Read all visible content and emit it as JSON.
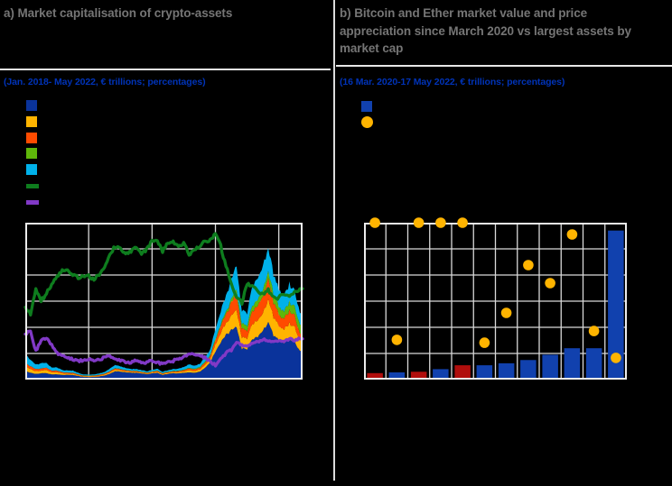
{
  "colors": {
    "background": "#000000",
    "title_text": "#757575",
    "subtitle_text": "#0033B8",
    "rule": "#E8E8E8",
    "grid": "#D9D9D9",
    "plot_border": "#ECECEC",
    "separator": "#DCDCDC",
    "area_blue": "#0A339B",
    "area_yellow": "#FFB400",
    "area_orange": "#FF4B00",
    "area_green": "#5FB70A",
    "area_cyan": "#00B1EA",
    "line_dark_green": "#0E7D1E",
    "line_purple": "#8139C6",
    "bar_blue": "#1141AE",
    "bar_red": "#B00E0C",
    "dot_yellow": "#FFB400"
  },
  "panel_a": {
    "title": "a) Market capitalisation of crypto-assets",
    "subtitle": "(Jan. 2018- May 2022, € trillions; percentages)",
    "legend": {
      "labels_visible": false,
      "items": [
        {
          "swatch": "square",
          "color_key": "area_blue"
        },
        {
          "swatch": "square",
          "color_key": "area_yellow"
        },
        {
          "swatch": "square",
          "color_key": "area_orange"
        },
        {
          "swatch": "square",
          "color_key": "area_green"
        },
        {
          "swatch": "square",
          "color_key": "area_cyan"
        },
        {
          "swatch": "line",
          "color_key": "line_dark_green"
        },
        {
          "swatch": "line",
          "color_key": "line_purple"
        }
      ]
    },
    "chart_data": {
      "type": "area",
      "stacked": true,
      "title": "Market capitalisation of crypto-assets",
      "x_range": "Jan 2018 - 17 May 2022",
      "ylim_left": [
        0,
        3
      ],
      "ylim_right": [
        0,
        100
      ],
      "units_left": "EUR trillions",
      "units_right": "percentages",
      "grid": {
        "h_divisions": 6,
        "v_gridline_month_indices": [
          12,
          24,
          36,
          48
        ]
      },
      "tick_labels_visible": false,
      "categories": [
        "2018-01",
        "2018-02",
        "2018-03",
        "2018-04",
        "2018-05",
        "2018-06",
        "2018-07",
        "2018-08",
        "2018-09",
        "2018-10",
        "2018-11",
        "2018-12",
        "2019-01",
        "2019-02",
        "2019-03",
        "2019-04",
        "2019-05",
        "2019-06",
        "2019-07",
        "2019-08",
        "2019-09",
        "2019-10",
        "2019-11",
        "2019-12",
        "2020-01",
        "2020-02",
        "2020-03",
        "2020-04",
        "2020-05",
        "2020-06",
        "2020-07",
        "2020-08",
        "2020-09",
        "2020-10",
        "2020-11",
        "2020-12",
        "2021-01",
        "2021-02",
        "2021-03",
        "2021-04",
        "2021-05",
        "2021-06",
        "2021-07",
        "2021-08",
        "2021-09",
        "2021-10",
        "2021-11",
        "2021-12",
        "2022-01",
        "2022-02",
        "2022-03",
        "2022-04",
        "2022-05"
      ],
      "series": [
        {
          "name": "area-blue",
          "color_key": "area_blue",
          "values": [
            0.16,
            0.13,
            0.11,
            0.12,
            0.12,
            0.1,
            0.1,
            0.09,
            0.09,
            0.09,
            0.07,
            0.05,
            0.05,
            0.05,
            0.06,
            0.08,
            0.11,
            0.16,
            0.15,
            0.14,
            0.13,
            0.13,
            0.12,
            0.1,
            0.12,
            0.13,
            0.09,
            0.11,
            0.12,
            0.12,
            0.13,
            0.14,
            0.13,
            0.15,
            0.22,
            0.32,
            0.55,
            0.72,
            0.85,
            0.95,
            1.0,
            0.6,
            0.58,
            0.78,
            0.8,
            0.95,
            1.1,
            0.85,
            0.75,
            0.7,
            0.78,
            0.72,
            0.55
          ]
        },
        {
          "name": "area-yellow",
          "color_key": "area_yellow",
          "values": [
            0.09,
            0.07,
            0.05,
            0.05,
            0.06,
            0.04,
            0.04,
            0.03,
            0.02,
            0.02,
            0.015,
            0.012,
            0.012,
            0.013,
            0.015,
            0.017,
            0.025,
            0.03,
            0.025,
            0.02,
            0.018,
            0.018,
            0.016,
            0.013,
            0.016,
            0.02,
            0.015,
            0.018,
            0.02,
            0.022,
            0.028,
            0.042,
            0.038,
            0.04,
            0.055,
            0.065,
            0.13,
            0.18,
            0.21,
            0.28,
            0.33,
            0.22,
            0.2,
            0.3,
            0.3,
            0.35,
            0.43,
            0.35,
            0.28,
            0.26,
            0.3,
            0.28,
            0.2
          ]
        },
        {
          "name": "area-orange",
          "color_key": "area_orange",
          "values": [
            0.06,
            0.05,
            0.04,
            0.04,
            0.04,
            0.03,
            0.03,
            0.02,
            0.02,
            0.02,
            0.015,
            0.012,
            0.012,
            0.012,
            0.014,
            0.016,
            0.02,
            0.025,
            0.02,
            0.018,
            0.015,
            0.015,
            0.013,
            0.012,
            0.014,
            0.016,
            0.012,
            0.014,
            0.016,
            0.018,
            0.022,
            0.03,
            0.026,
            0.03,
            0.04,
            0.05,
            0.09,
            0.14,
            0.17,
            0.25,
            0.3,
            0.17,
            0.15,
            0.25,
            0.27,
            0.33,
            0.4,
            0.28,
            0.22,
            0.2,
            0.24,
            0.22,
            0.13
          ]
        },
        {
          "name": "area-green",
          "color_key": "area_green",
          "values": [
            0.002,
            0.002,
            0.002,
            0.002,
            0.002,
            0.003,
            0.003,
            0.003,
            0.003,
            0.003,
            0.003,
            0.003,
            0.003,
            0.003,
            0.003,
            0.004,
            0.004,
            0.005,
            0.005,
            0.005,
            0.005,
            0.005,
            0.005,
            0.005,
            0.006,
            0.006,
            0.007,
            0.008,
            0.009,
            0.01,
            0.012,
            0.014,
            0.016,
            0.018,
            0.02,
            0.025,
            0.03,
            0.04,
            0.05,
            0.06,
            0.08,
            0.09,
            0.09,
            0.1,
            0.11,
            0.12,
            0.13,
            0.14,
            0.15,
            0.15,
            0.16,
            0.165,
            0.17
          ]
        },
        {
          "name": "area-cyan",
          "color_key": "area_cyan",
          "values": [
            0.17,
            0.12,
            0.09,
            0.1,
            0.09,
            0.06,
            0.06,
            0.04,
            0.04,
            0.04,
            0.03,
            0.02,
            0.02,
            0.02,
            0.025,
            0.03,
            0.05,
            0.06,
            0.05,
            0.04,
            0.03,
            0.035,
            0.03,
            0.025,
            0.03,
            0.035,
            0.025,
            0.03,
            0.035,
            0.04,
            0.05,
            0.07,
            0.06,
            0.06,
            0.08,
            0.1,
            0.18,
            0.25,
            0.3,
            0.38,
            0.45,
            0.26,
            0.24,
            0.38,
            0.4,
            0.46,
            0.45,
            0.4,
            0.32,
            0.3,
            0.36,
            0.32,
            0.22
          ]
        }
      ],
      "line_series": [
        {
          "name": "line-dark-green",
          "color_key": "line_dark_green",
          "axis": "right",
          "values": [
            46,
            42,
            58,
            50,
            55,
            60,
            66,
            70,
            69,
            67,
            65,
            66,
            66,
            64,
            67,
            72,
            80,
            85,
            83,
            80,
            82,
            84,
            80,
            83,
            88,
            89,
            82,
            87,
            88,
            85,
            87,
            80,
            83,
            85,
            88,
            89,
            93,
            85,
            72,
            62,
            52,
            49,
            61,
            59,
            57,
            54,
            57,
            52,
            52,
            55,
            54,
            56,
            58
          ]
        },
        {
          "name": "line-purple",
          "color_key": "line_purple",
          "axis": "right",
          "values": [
            29,
            31,
            18,
            25,
            26,
            22,
            17,
            15,
            14,
            13,
            12,
            12,
            13,
            12,
            13,
            14,
            15,
            13,
            12,
            11,
            11,
            12,
            11,
            11,
            12,
            11,
            10,
            11,
            12,
            13,
            14,
            17,
            16,
            15,
            14,
            12,
            9,
            13,
            17,
            19,
            24,
            22,
            22,
            23,
            24,
            26,
            25,
            24,
            25,
            24,
            26,
            25,
            26
          ]
        }
      ]
    }
  },
  "panel_b": {
    "title": "b) Bitcoin and Ether market value and price appreciation since March 2020 vs largest assets by market cap",
    "subtitle": "(16 Mar. 2020-17 May 2022, € trillions; percentages)",
    "legend": {
      "labels_visible": false,
      "items": [
        {
          "swatch": "square",
          "color_key": "bar_blue"
        },
        {
          "swatch": "circle",
          "color_key": "dot_yellow"
        }
      ]
    },
    "chart_data": {
      "type": "bar",
      "title": "Bitcoin and Ether market value and price appreciation since March 2020 vs largest assets by market cap",
      "ylim_left": [
        0,
        12
      ],
      "ylim_right": [
        0,
        600
      ],
      "units_left": "EUR trillions",
      "units_right": "percentages",
      "columns": 12,
      "h_divisions": 6,
      "tick_labels_visible": false,
      "bars": {
        "values": [
          0.5,
          0.55,
          0.6,
          0.8,
          1.1,
          1.1,
          1.25,
          1.5,
          1.9,
          2.4,
          2.4,
          11.4
        ],
        "color_keys": [
          "bar_red",
          "bar_blue",
          "bar_red",
          "bar_blue",
          "bar_red",
          "bar_blue",
          "bar_blue",
          "bar_blue",
          "bar_blue",
          "bar_blue",
          "bar_blue",
          "bar_blue"
        ]
      },
      "dots": {
        "values": [
          600,
          152,
          600,
          600,
          600,
          141,
          255,
          438,
          369,
          555,
          186,
          83
        ],
        "at_axis_max": [
          true,
          false,
          true,
          true,
          true,
          false,
          false,
          false,
          false,
          false,
          false,
          false
        ]
      }
    }
  }
}
